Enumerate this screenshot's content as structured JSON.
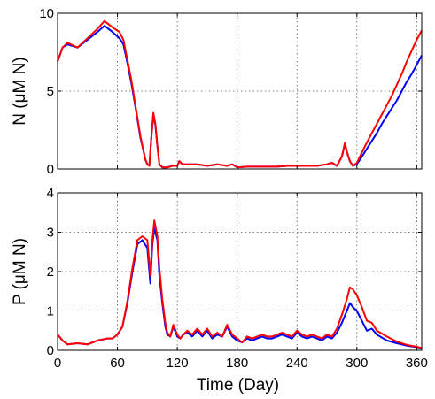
{
  "chart_data": [
    {
      "type": "line",
      "xlabel": "",
      "ylabel": "N (μM N)",
      "xlim": [
        0,
        365
      ],
      "ylim": [
        0,
        10
      ],
      "xticks": [
        0,
        60,
        120,
        180,
        240,
        300,
        360
      ],
      "xtick_labels": [],
      "yticks": [
        0,
        5,
        10
      ],
      "ytick_labels": [
        "0",
        "5",
        "10"
      ],
      "grid": true,
      "series": [
        {
          "color": "#0000ff",
          "x": [
            0,
            5,
            10,
            20,
            30,
            40,
            47,
            55,
            62,
            66,
            70,
            74,
            78,
            80,
            83,
            86,
            88,
            90,
            92,
            94,
            96,
            98,
            100,
            102,
            105,
            110,
            115,
            120,
            122,
            125,
            130,
            140,
            150,
            160,
            170,
            175,
            180,
            190,
            200,
            210,
            220,
            230,
            240,
            250,
            260,
            270,
            275,
            280,
            285,
            288,
            290,
            293,
            296,
            300,
            303,
            306,
            310,
            315,
            320,
            325,
            330,
            335,
            340,
            345,
            350,
            355,
            360,
            365
          ],
          "y": [
            6.9,
            7.8,
            8.0,
            7.8,
            8.3,
            8.8,
            9.2,
            8.8,
            8.4,
            8.0,
            6.8,
            5.5,
            4.0,
            3.2,
            2.0,
            1.2,
            0.6,
            0.3,
            0.2,
            2.0,
            3.5,
            2.8,
            1.5,
            0.3,
            0.1,
            0.1,
            0.2,
            0.2,
            0.5,
            0.3,
            0.3,
            0.3,
            0.2,
            0.3,
            0.2,
            0.3,
            0.1,
            0.15,
            0.15,
            0.15,
            0.15,
            0.2,
            0.2,
            0.2,
            0.2,
            0.3,
            0.4,
            0.2,
            0.8,
            1.6,
            1.1,
            0.5,
            0.2,
            0.3,
            0.6,
            0.9,
            1.3,
            1.8,
            2.3,
            2.9,
            3.4,
            3.9,
            4.4,
            5.0,
            5.6,
            6.1,
            6.7,
            7.3
          ]
        },
        {
          "color": "#ff0000",
          "x": [
            0,
            5,
            10,
            20,
            30,
            40,
            47,
            55,
            62,
            66,
            70,
            74,
            78,
            80,
            83,
            86,
            88,
            90,
            92,
            94,
            96,
            98,
            100,
            102,
            105,
            110,
            115,
            120,
            122,
            125,
            130,
            140,
            150,
            160,
            170,
            175,
            180,
            190,
            200,
            210,
            220,
            230,
            240,
            250,
            260,
            270,
            275,
            280,
            285,
            288,
            290,
            293,
            296,
            300,
            303,
            306,
            310,
            315,
            320,
            325,
            330,
            335,
            340,
            345,
            350,
            355,
            360,
            365
          ],
          "y": [
            6.9,
            7.8,
            8.1,
            7.8,
            8.4,
            9.0,
            9.5,
            9.1,
            8.8,
            8.3,
            7.0,
            5.7,
            4.1,
            3.3,
            2.1,
            1.2,
            0.6,
            0.3,
            0.2,
            2.0,
            3.6,
            2.9,
            1.5,
            0.3,
            0.1,
            0.1,
            0.2,
            0.2,
            0.5,
            0.3,
            0.3,
            0.3,
            0.2,
            0.3,
            0.2,
            0.3,
            0.1,
            0.15,
            0.15,
            0.15,
            0.15,
            0.2,
            0.2,
            0.2,
            0.2,
            0.3,
            0.4,
            0.2,
            0.8,
            1.7,
            1.1,
            0.5,
            0.2,
            0.4,
            0.8,
            1.2,
            1.7,
            2.3,
            2.9,
            3.5,
            4.1,
            4.7,
            5.4,
            6.1,
            6.9,
            7.6,
            8.3,
            8.9
          ]
        }
      ]
    },
    {
      "type": "line",
      "xlabel": "Time (Day)",
      "ylabel": "P (μM N)",
      "xlim": [
        0,
        365
      ],
      "ylim": [
        0,
        4
      ],
      "xticks": [
        0,
        60,
        120,
        180,
        240,
        300,
        360
      ],
      "xtick_labels": [
        "0",
        "60",
        "120",
        "180",
        "240",
        "300",
        "360"
      ],
      "yticks": [
        0,
        1,
        2,
        3,
        4
      ],
      "ytick_labels": [
        "0",
        "1",
        "2",
        "3",
        "4"
      ],
      "grid": true,
      "series": [
        {
          "color": "#0000ff",
          "x": [
            0,
            5,
            10,
            20,
            30,
            40,
            50,
            55,
            60,
            65,
            70,
            75,
            80,
            85,
            90,
            93,
            95,
            97,
            100,
            102,
            105,
            108,
            110,
            113,
            116,
            120,
            123,
            126,
            130,
            135,
            140,
            145,
            150,
            155,
            160,
            165,
            170,
            175,
            180,
            185,
            190,
            195,
            200,
            205,
            210,
            215,
            220,
            225,
            230,
            235,
            240,
            245,
            250,
            255,
            260,
            265,
            270,
            275,
            280,
            285,
            290,
            293,
            296,
            300,
            305,
            310,
            315,
            320,
            330,
            340,
            350,
            360,
            365
          ],
          "y": [
            0.4,
            0.25,
            0.15,
            0.18,
            0.15,
            0.25,
            0.3,
            0.3,
            0.4,
            0.6,
            1.2,
            2.0,
            2.7,
            2.8,
            2.6,
            1.7,
            2.7,
            3.1,
            2.8,
            1.9,
            1.2,
            0.6,
            0.4,
            0.35,
            0.6,
            0.35,
            0.3,
            0.4,
            0.45,
            0.35,
            0.5,
            0.35,
            0.5,
            0.3,
            0.4,
            0.35,
            0.6,
            0.35,
            0.25,
            0.2,
            0.3,
            0.25,
            0.3,
            0.35,
            0.3,
            0.3,
            0.35,
            0.4,
            0.35,
            0.3,
            0.45,
            0.35,
            0.3,
            0.35,
            0.3,
            0.25,
            0.35,
            0.3,
            0.45,
            0.7,
            1.0,
            1.2,
            1.1,
            1.0,
            0.75,
            0.5,
            0.55,
            0.4,
            0.25,
            0.18,
            0.12,
            0.08,
            0.06
          ]
        },
        {
          "color": "#ff0000",
          "x": [
            0,
            5,
            10,
            20,
            30,
            40,
            50,
            55,
            60,
            65,
            70,
            75,
            80,
            85,
            90,
            93,
            95,
            97,
            100,
            102,
            105,
            108,
            110,
            113,
            116,
            120,
            123,
            126,
            130,
            135,
            140,
            145,
            150,
            155,
            160,
            165,
            170,
            175,
            180,
            185,
            190,
            195,
            200,
            205,
            210,
            215,
            220,
            225,
            230,
            235,
            240,
            245,
            250,
            255,
            260,
            265,
            270,
            275,
            280,
            285,
            290,
            293,
            296,
            300,
            305,
            310,
            315,
            320,
            330,
            340,
            350,
            360,
            365
          ],
          "y": [
            0.4,
            0.25,
            0.15,
            0.18,
            0.15,
            0.25,
            0.3,
            0.3,
            0.4,
            0.6,
            1.25,
            2.1,
            2.8,
            2.9,
            2.8,
            1.9,
            2.8,
            3.3,
            2.9,
            2.1,
            1.3,
            0.7,
            0.45,
            0.35,
            0.65,
            0.4,
            0.3,
            0.4,
            0.5,
            0.4,
            0.55,
            0.4,
            0.55,
            0.35,
            0.45,
            0.35,
            0.65,
            0.4,
            0.3,
            0.2,
            0.35,
            0.3,
            0.35,
            0.4,
            0.35,
            0.35,
            0.4,
            0.45,
            0.4,
            0.35,
            0.5,
            0.4,
            0.35,
            0.4,
            0.35,
            0.3,
            0.4,
            0.35,
            0.55,
            0.9,
            1.3,
            1.6,
            1.55,
            1.4,
            1.1,
            0.75,
            0.7,
            0.5,
            0.35,
            0.22,
            0.14,
            0.09,
            0.06
          ]
        }
      ]
    }
  ]
}
